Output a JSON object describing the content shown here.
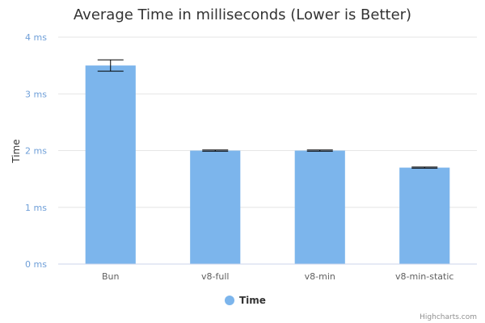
{
  "credit": "Highcharts.com",
  "chart_data": {
    "type": "bar",
    "title": "Average Time in milliseconds (Lower is Better)",
    "ylabel": "Time",
    "xlabel": "",
    "ylim": [
      0,
      4
    ],
    "yticks": [
      0,
      1,
      2,
      3,
      4
    ],
    "ytick_labels": [
      "0 ms",
      "1 ms",
      "2 ms",
      "3 ms",
      "4 ms"
    ],
    "categories": [
      "Bun",
      "v8-full",
      "v8-min",
      "v8-min-static"
    ],
    "series": [
      {
        "name": "Time",
        "color": "#7cb5ec",
        "values": [
          3.5,
          2.0,
          2.0,
          1.7
        ],
        "error_low": [
          3.4,
          1.99,
          1.99,
          1.69
        ],
        "error_high": [
          3.6,
          2.01,
          2.01,
          1.71
        ]
      }
    ],
    "grid": true,
    "legend_position": "bottom-center"
  }
}
